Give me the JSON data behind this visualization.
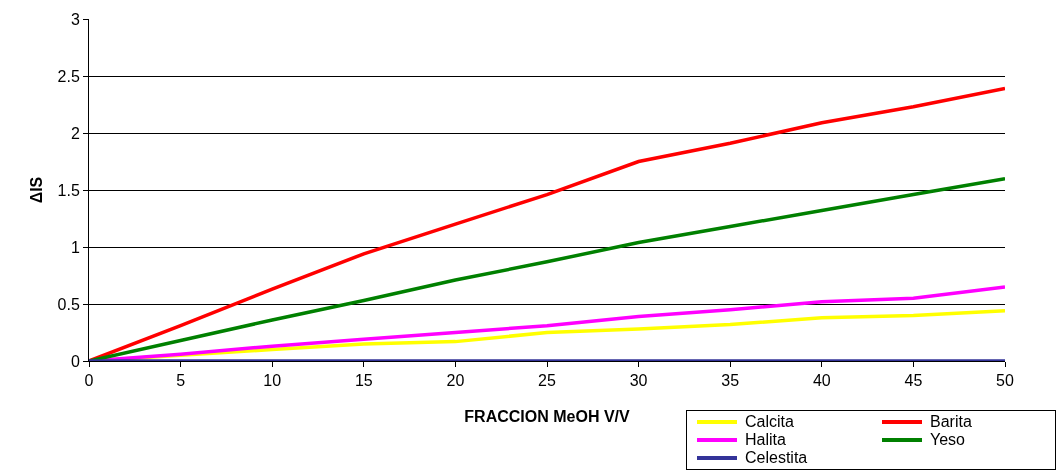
{
  "chart_data": {
    "type": "line",
    "xlabel": "FRACCION MeOH V/V",
    "ylabel": "ΔIS",
    "x": [
      0,
      5,
      10,
      15,
      20,
      25,
      30,
      35,
      40,
      45,
      50
    ],
    "series": [
      {
        "name": "Calcita",
        "color": "#ffff00",
        "values": [
          0,
          0.05,
          0.1,
          0.15,
          0.17,
          0.25,
          0.28,
          0.32,
          0.38,
          0.4,
          0.44
        ]
      },
      {
        "name": "Barita",
        "color": "#ff0000",
        "values": [
          0,
          0.31,
          0.63,
          0.94,
          1.2,
          1.46,
          1.75,
          1.91,
          2.09,
          2.23,
          2.39
        ]
      },
      {
        "name": "Halita",
        "color": "#ff00ff",
        "values": [
          0,
          0.06,
          0.13,
          0.19,
          0.25,
          0.31,
          0.39,
          0.45,
          0.52,
          0.55,
          0.65
        ]
      },
      {
        "name": "Yeso",
        "color": "#008000",
        "values": [
          0,
          0.18,
          0.36,
          0.53,
          0.71,
          0.87,
          1.04,
          1.18,
          1.32,
          1.46,
          1.6
        ]
      },
      {
        "name": "Celestita",
        "color": "#333399",
        "values": [
          0,
          0,
          0,
          0,
          0,
          0,
          0,
          0,
          0,
          0,
          0
        ]
      }
    ],
    "xlim": [
      0,
      50
    ],
    "xticks": [
      0,
      5,
      10,
      15,
      20,
      25,
      30,
      35,
      40,
      45,
      50
    ],
    "ylim": [
      0,
      3
    ],
    "yticks": [
      0,
      0.5,
      1,
      1.5,
      2,
      2.5,
      3
    ],
    "grid": "y",
    "legend": "bottom right",
    "marker": "none",
    "line_style": "solid"
  }
}
